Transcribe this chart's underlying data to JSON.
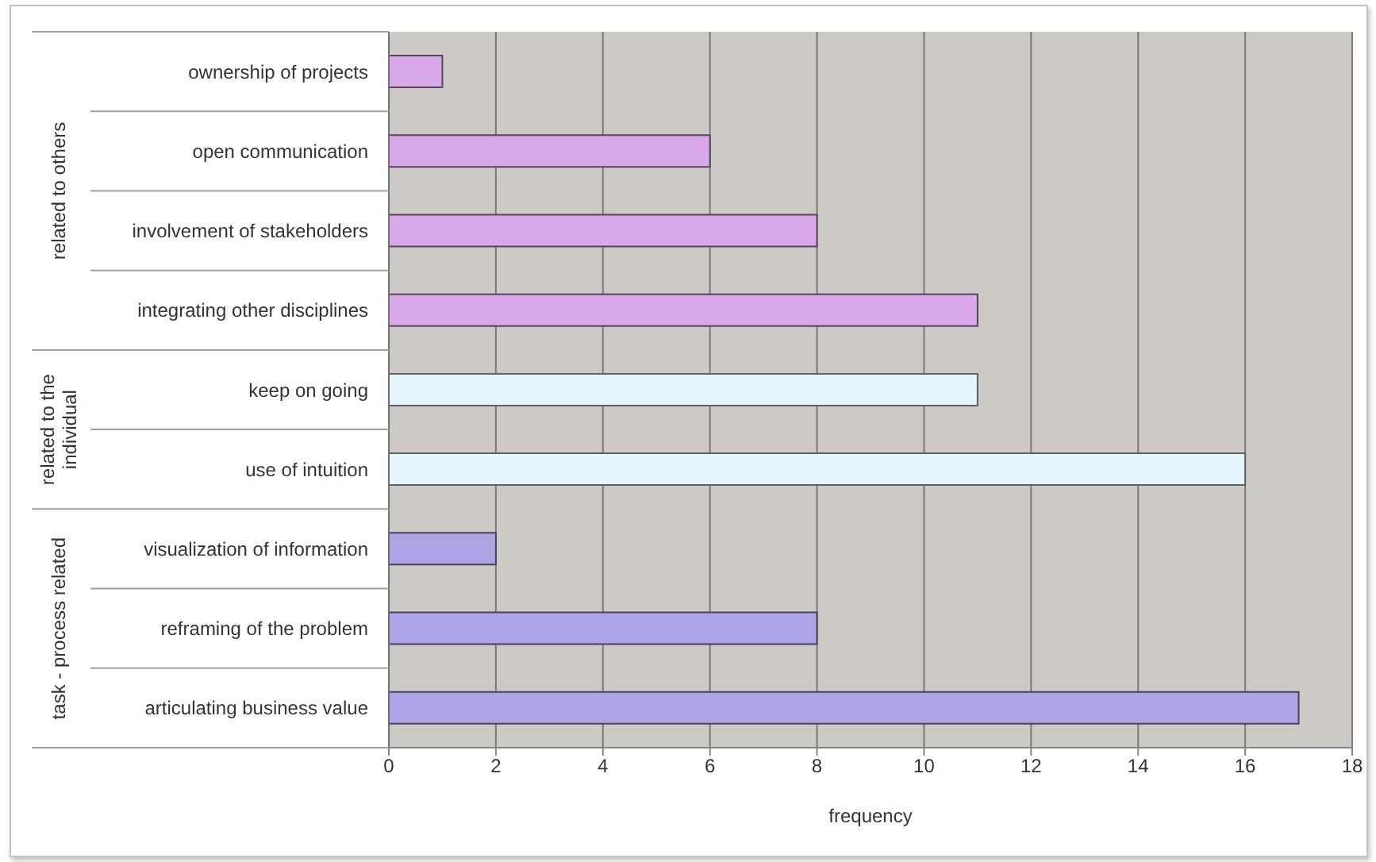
{
  "chart_data": {
    "type": "bar",
    "orientation": "horizontal",
    "xlabel": "frequency",
    "categories": [
      "ownership of projects",
      "open communication",
      "involvement of stakeholders",
      "integrating other disciplines",
      "keep on going",
      "use of intuition",
      "visualization of information",
      "reframing of the problem",
      "articulating business value"
    ],
    "values": [
      1,
      6,
      8,
      11,
      11,
      16,
      2,
      8,
      17
    ],
    "colors": [
      "#d8a8e8",
      "#d8a8e8",
      "#d8a8e8",
      "#d8a8e8",
      "#e4f6fc",
      "#e4f6fc",
      "#aca4e4",
      "#aca4e4",
      "#aca4e4"
    ],
    "annotations": [
      "related to others",
      "related to the individual",
      "task - process related"
    ],
    "xlim": [
      0,
      18
    ],
    "xticks": [
      0,
      2,
      4,
      6,
      8,
      10,
      12,
      14,
      16,
      18
    ],
    "grid": "x"
  }
}
